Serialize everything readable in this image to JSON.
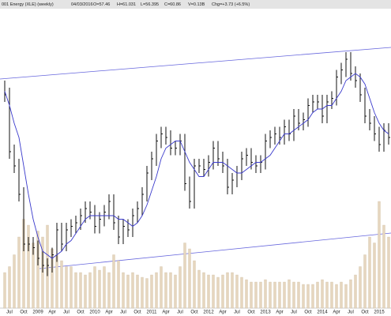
{
  "chart_data": {
    "type": "ohlc",
    "title": "001 Energy (XLE) (weekly)",
    "quote": [
      "04/03/2016",
      "O=57.46",
      "H=61.031",
      "L=56.395",
      "C=60.86",
      "V=0.13B",
      "Chg=+3.73 (+6.5%)"
    ],
    "categories": [
      null,
      "Jul",
      null,
      null,
      "Oct",
      null,
      null,
      "2009",
      null,
      null,
      "Apr",
      null,
      null,
      "Jul",
      null,
      null,
      "Oct",
      null,
      null,
      "2010",
      null,
      null,
      "Apr",
      null,
      null,
      "Jul",
      null,
      null,
      "Oct",
      null,
      null,
      "2011",
      null,
      null,
      "Apr",
      null,
      null,
      "Jul",
      null,
      null,
      "Oct",
      null,
      null,
      "2012",
      null,
      null,
      "Apr",
      null,
      null,
      "Jul",
      null,
      null,
      "Oct",
      null,
      null,
      "2013",
      null,
      null,
      "Apr",
      null,
      null,
      "Jul",
      null,
      null,
      "Oct",
      null,
      null,
      "2014",
      null,
      null,
      "Apr",
      null,
      null,
      "Jul",
      null,
      null,
      "Oct",
      null,
      null,
      "2015",
      null,
      null
    ],
    "high": [
      94,
      92,
      76,
      72,
      64,
      50,
      50,
      49,
      46,
      44,
      47,
      54,
      54,
      54,
      55,
      56,
      58,
      60,
      60,
      59,
      57,
      59,
      62,
      62,
      56,
      55,
      55,
      58,
      60,
      64,
      70,
      74,
      79,
      81,
      81,
      80,
      77,
      79,
      79,
      67,
      72,
      72,
      72,
      73,
      77,
      77,
      74,
      72,
      68,
      70,
      74,
      75,
      75,
      73,
      73,
      79,
      80,
      81,
      81,
      83,
      83,
      86,
      86,
      85,
      89,
      90,
      90,
      90,
      90,
      91,
      97,
      99,
      102,
      102,
      98,
      96,
      92,
      86,
      84,
      81,
      82,
      82
    ],
    "low": [
      88,
      72,
      68,
      60,
      46,
      46,
      45,
      42,
      40,
      39,
      40,
      43,
      46,
      46,
      50,
      51,
      52,
      54,
      55,
      51,
      51,
      53,
      55,
      52,
      48,
      48,
      50,
      50,
      54,
      56,
      60,
      66,
      70,
      75,
      76,
      73,
      73,
      73,
      63,
      58,
      58,
      68,
      67,
      67,
      69,
      70,
      68,
      62,
      62,
      64,
      66,
      70,
      69,
      68,
      68,
      69,
      75,
      76,
      76,
      76,
      77,
      77,
      80,
      80,
      81,
      85,
      86,
      82,
      82,
      86,
      87,
      93,
      95,
      94,
      92,
      88,
      82,
      80,
      77,
      74,
      74,
      76
    ],
    "close": [
      90,
      74,
      70,
      62,
      48,
      48,
      47,
      44,
      42,
      42,
      45,
      52,
      48,
      52,
      53,
      54,
      56,
      58,
      57,
      53,
      55,
      57,
      60,
      54,
      50,
      53,
      52,
      56,
      58,
      62,
      68,
      72,
      77,
      79,
      78,
      75,
      75,
      77,
      65,
      60,
      70,
      70,
      69,
      71,
      75,
      72,
      70,
      64,
      66,
      68,
      72,
      73,
      71,
      70,
      71,
      77,
      78,
      79,
      78,
      81,
      79,
      84,
      82,
      83,
      87,
      88,
      88,
      84,
      88,
      89,
      95,
      97,
      100,
      96,
      94,
      90,
      84,
      82,
      79,
      76,
      80,
      78
    ],
    "ma": [
      91,
      87,
      82,
      78,
      70,
      62,
      55,
      50,
      46,
      45,
      44,
      45,
      46,
      48,
      49,
      51,
      53,
      55,
      56,
      56,
      56,
      56,
      56,
      56,
      55,
      55,
      54,
      53,
      54,
      56,
      59,
      63,
      67,
      72,
      75,
      76,
      77,
      77,
      74,
      71,
      69,
      67,
      67,
      69,
      71,
      71,
      71,
      70,
      69,
      68,
      68,
      69,
      70,
      71,
      71,
      72,
      73,
      75,
      77,
      79,
      79,
      80,
      81,
      82,
      83,
      85,
      86,
      86,
      87,
      87,
      89,
      91,
      94,
      95,
      96,
      95,
      93,
      89,
      85,
      82,
      80,
      79
    ],
    "volume": [
      30,
      35,
      45,
      60,
      75,
      70,
      55,
      65,
      60,
      70,
      50,
      45,
      40,
      35,
      35,
      30,
      30,
      28,
      30,
      35,
      32,
      35,
      30,
      45,
      40,
      30,
      28,
      30,
      28,
      26,
      25,
      28,
      30,
      35,
      30,
      30,
      28,
      35,
      55,
      50,
      40,
      32,
      30,
      28,
      28,
      26,
      28,
      30,
      30,
      28,
      26,
      24,
      22,
      22,
      22,
      24,
      22,
      22,
      22,
      22,
      24,
      22,
      22,
      20,
      20,
      20,
      22,
      24,
      22,
      22,
      20,
      22,
      20,
      24,
      28,
      35,
      45,
      60,
      55,
      90,
      70,
      60
    ],
    "ylim": [
      30,
      114
    ],
    "vlim": [
      0,
      100
    ],
    "color": "#111111",
    "ma_color": "#3a3acc",
    "volume_color": "#e6d6bf"
  }
}
